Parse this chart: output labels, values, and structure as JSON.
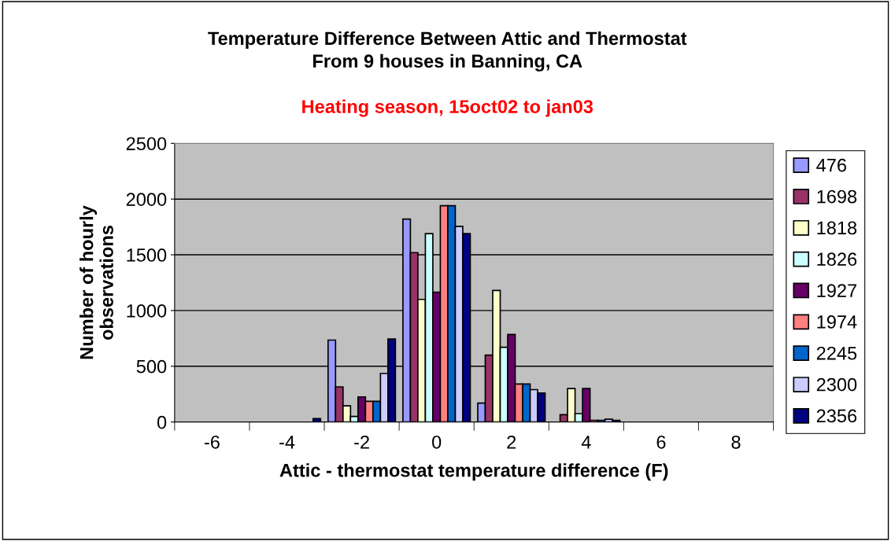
{
  "chart_data": {
    "type": "bar",
    "title": "Temperature Difference Between Attic and Thermostat\nFrom 9 houses in Banning, CA",
    "subtitle": "Heating season, 15oct02 to jan03",
    "xlabel": "Attic - thermostat temperature difference (F)",
    "ylabel": "Number of hourly\nobservations",
    "categories": [
      "-6",
      "-4",
      "-2",
      "0",
      "2",
      "4",
      "6",
      "8"
    ],
    "series": [
      {
        "name": "476",
        "color": "#9999ff",
        "values": [
          null,
          null,
          735,
          1820,
          170,
          null,
          null,
          null
        ]
      },
      {
        "name": "1698",
        "color": "#993366",
        "values": [
          null,
          null,
          315,
          1520,
          600,
          65,
          null,
          null
        ]
      },
      {
        "name": "1818",
        "color": "#ffffcc",
        "values": [
          null,
          null,
          145,
          1100,
          1180,
          300,
          null,
          null
        ]
      },
      {
        "name": "1826",
        "color": "#ccffff",
        "values": [
          null,
          null,
          50,
          1690,
          670,
          75,
          null,
          null
        ]
      },
      {
        "name": "1927",
        "color": "#660066",
        "values": [
          null,
          null,
          225,
          1165,
          785,
          300,
          null,
          null
        ]
      },
      {
        "name": "1974",
        "color": "#ff8080",
        "values": [
          null,
          null,
          185,
          1940,
          340,
          15,
          null,
          null
        ]
      },
      {
        "name": "2245",
        "color": "#0066cc",
        "values": [
          null,
          null,
          185,
          1940,
          340,
          15,
          null,
          null
        ]
      },
      {
        "name": "2300",
        "color": "#ccccff",
        "values": [
          null,
          null,
          435,
          1755,
          290,
          25,
          null,
          null
        ]
      },
      {
        "name": "2356",
        "color": "#000080",
        "values": [
          null,
          30,
          745,
          1690,
          260,
          15,
          null,
          null
        ]
      }
    ],
    "ylim": [
      0,
      2500
    ],
    "yticks": [
      0,
      500,
      1000,
      1500,
      2000,
      2500
    ],
    "grid": "y",
    "legend": "right"
  }
}
